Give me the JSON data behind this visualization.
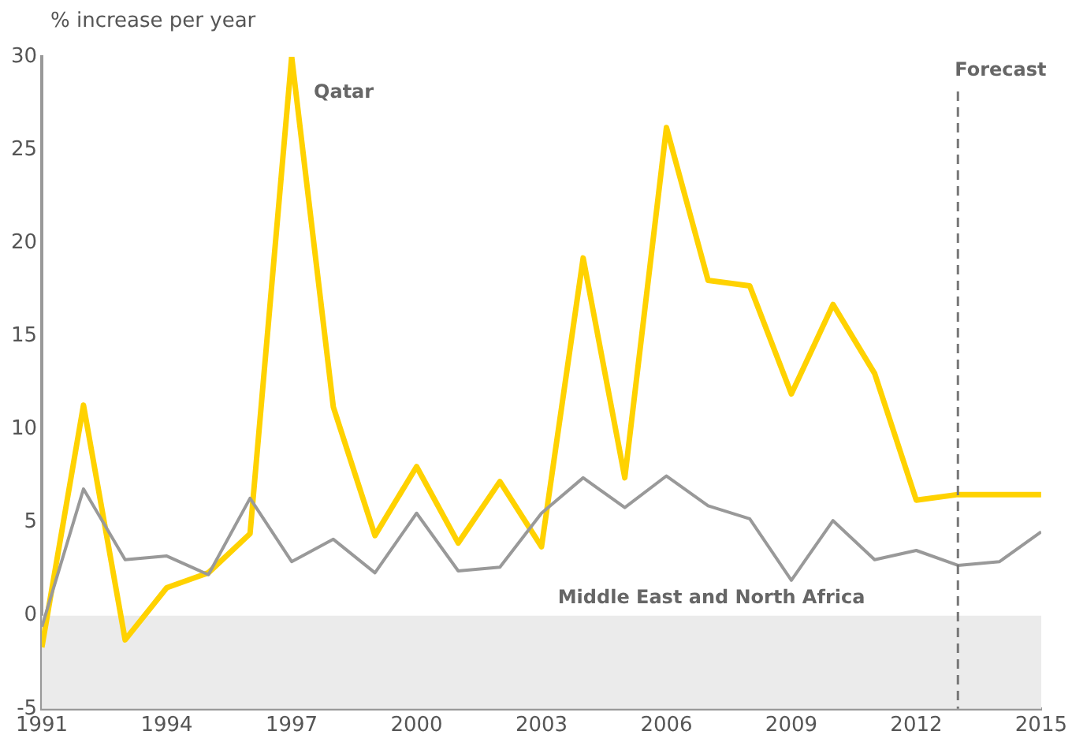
{
  "chart_data": {
    "type": "line",
    "ylabel": "% increase per year",
    "x": [
      1991,
      1992,
      1993,
      1994,
      1995,
      1996,
      1997,
      1998,
      1999,
      2000,
      2001,
      2002,
      2003,
      2004,
      2005,
      2006,
      2007,
      2008,
      2009,
      2010,
      2011,
      2012,
      2013,
      2014,
      2015
    ],
    "series": [
      {
        "name": "Qatar",
        "color": "#ffd200",
        "values": [
          -1.7,
          11.3,
          -1.3,
          1.5,
          2.3,
          4.4,
          30,
          11.2,
          4.3,
          8.0,
          3.9,
          7.2,
          3.7,
          19.2,
          7.4,
          26.2,
          18.0,
          17.7,
          11.9,
          16.7,
          13.0,
          6.2,
          6.5,
          6.5,
          6.5
        ]
      },
      {
        "name": "Middle East and North Africa",
        "color": "#999999",
        "values": [
          -0.6,
          6.8,
          3.0,
          3.2,
          2.2,
          6.3,
          2.9,
          4.1,
          2.3,
          5.5,
          2.4,
          2.6,
          5.5,
          7.4,
          5.8,
          7.5,
          5.9,
          5.2,
          1.9,
          5.1,
          3.0,
          3.5,
          2.7,
          2.9,
          4.5
        ]
      }
    ],
    "xlim": [
      1991,
      2015
    ],
    "xticks": [
      1991,
      1994,
      1997,
      2000,
      2003,
      2006,
      2009,
      2012,
      2015
    ],
    "ylim": [
      -5,
      30
    ],
    "yticks": [
      -5,
      0,
      5,
      10,
      15,
      20,
      25,
      30
    ],
    "grid": false,
    "legend": false,
    "marker": "none",
    "line_style": "solid",
    "ref_lines": [
      {
        "axis": "x",
        "value": 2013,
        "label": "Forecast",
        "color": "#777777",
        "line_style": "dashed"
      }
    ],
    "bands": [
      {
        "axis": "y",
        "from": -5,
        "to": 0,
        "color": "#ebebeb"
      }
    ]
  }
}
